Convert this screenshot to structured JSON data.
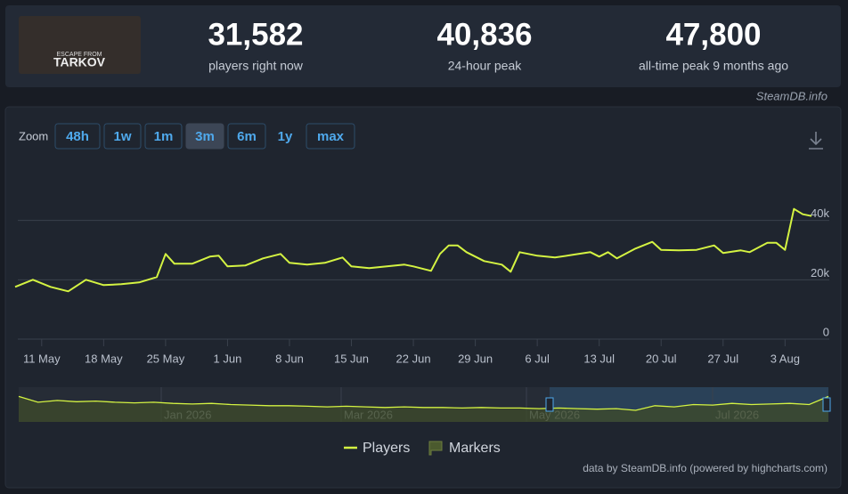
{
  "header": {
    "logo": [
      "ESCAPE FROM",
      "TARKOV"
    ],
    "stats": [
      {
        "value": "31,582",
        "label": "players right now"
      },
      {
        "value": "40,836",
        "label": "24-hour peak"
      },
      {
        "value": "47,800",
        "label": "all-time peak 9 months ago"
      }
    ],
    "source": "SteamDB.info"
  },
  "zoom": {
    "label": "Zoom",
    "buttons": [
      "48h",
      "1w",
      "1m",
      "3m",
      "6m",
      "1y",
      "max"
    ],
    "active": "3m",
    "disabled": "1y"
  },
  "chart_data": {
    "type": "line",
    "x": [
      128,
      130,
      132,
      134,
      136,
      138,
      140,
      142,
      144,
      145,
      146,
      148,
      150,
      151,
      152,
      154,
      156,
      158,
      159,
      161,
      163,
      165,
      166,
      168,
      170,
      172,
      173,
      175,
      176,
      177,
      178,
      179,
      181,
      183,
      184,
      185,
      187,
      189,
      191,
      193,
      194,
      195,
      196,
      198,
      200,
      201,
      203,
      205,
      207,
      208,
      210,
      211,
      213,
      214,
      215,
      216,
      217,
      218
    ],
    "series": [
      {
        "name": "Players",
        "color": "#d4f342",
        "values": [
          17600,
          20000,
          17600,
          16100,
          20000,
          18200,
          18500,
          19100,
          20900,
          28700,
          25400,
          25400,
          27800,
          28100,
          24500,
          24800,
          27200,
          28700,
          25700,
          25100,
          25700,
          27500,
          24500,
          23900,
          24500,
          25100,
          24500,
          23000,
          28700,
          31600,
          31600,
          29300,
          26300,
          25100,
          22700,
          29300,
          28100,
          27500,
          28400,
          29300,
          27800,
          29300,
          27200,
          30400,
          32800,
          30100,
          29900,
          30100,
          31600,
          29000,
          29900,
          29300,
          32500,
          32500,
          30100,
          43900,
          42100,
          41500
        ]
      }
    ],
    "xlim": [
      128,
      220
    ],
    "xticks": [
      {
        "value": 131,
        "label": "11 May"
      },
      {
        "value": 138,
        "label": "18 May"
      },
      {
        "value": 145,
        "label": "25 May"
      },
      {
        "value": 152,
        "label": "1 Jun"
      },
      {
        "value": 159,
        "label": "8 Jun"
      },
      {
        "value": 166,
        "label": "15 Jun"
      },
      {
        "value": 173,
        "label": "22 Jun"
      },
      {
        "value": 180,
        "label": "29 Jun"
      },
      {
        "value": 187,
        "label": "6 Jul"
      },
      {
        "value": 194,
        "label": "13 Jul"
      },
      {
        "value": 201,
        "label": "20 Jul"
      },
      {
        "value": 208,
        "label": "27 Jul"
      },
      {
        "value": 215,
        "label": "3 Aug"
      }
    ],
    "ylim": [
      0,
      60000
    ],
    "yticks": [
      0,
      {
        "value": 20000,
        "label": "20k"
      },
      {
        "value": 40000,
        "label": "40k"
      }
    ],
    "grid": true,
    "legend": [
      "Players",
      "Markers"
    ],
    "navigator": {
      "labels": [
        "Jan 2026",
        "Mar 2026",
        "May 2026",
        "Jul 2026"
      ],
      "ylim": [
        0,
        60000
      ],
      "values": [
        44000,
        34000,
        37000,
        35000,
        36000,
        34000,
        33000,
        34000,
        32000,
        31000,
        32000,
        30000,
        29000,
        28000,
        28000,
        27000,
        26000,
        27000,
        26000,
        25000,
        26000,
        25000,
        25000,
        24000,
        25000,
        24000,
        24000,
        23000,
        24000,
        23000,
        22000,
        23000,
        20000,
        28000,
        26000,
        30000,
        29000,
        32000,
        30000,
        31000,
        32000,
        30000,
        44000
      ]
    },
    "credit": "data by SteamDB.info (powered by highcharts.com)"
  }
}
